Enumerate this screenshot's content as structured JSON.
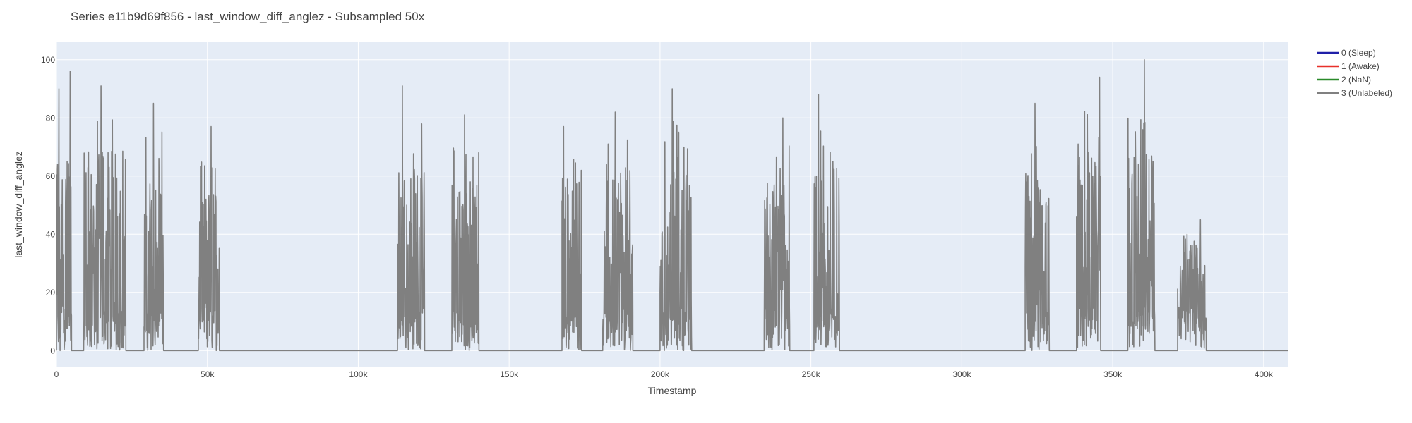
{
  "chart_data": {
    "type": "line",
    "title": "Series e11b9d69f856 - last_window_diff_anglez - Subsampled 50x",
    "xlabel": "Timestamp",
    "ylabel": "last_window_diff_anglez",
    "xlim": [
      0,
      408000
    ],
    "ylim": [
      -5.5,
      106
    ],
    "x_ticks": [
      0,
      50000,
      100000,
      150000,
      200000,
      250000,
      300000,
      350000,
      400000
    ],
    "x_tick_labels": [
      "0",
      "50k",
      "100k",
      "150k",
      "200k",
      "250k",
      "300k",
      "350k",
      "400k"
    ],
    "y_ticks": [
      0,
      20,
      40,
      60,
      80,
      100
    ],
    "y_tick_labels": [
      "0",
      "20",
      "40",
      "60",
      "80",
      "100"
    ],
    "grid": true,
    "legend_position": "top-right",
    "legend": [
      {
        "name": "0 (Sleep)",
        "color": "#1f1fa8"
      },
      {
        "name": "1 (Awake)",
        "color": "#e8312a"
      },
      {
        "name": "2 (NaN)",
        "color": "#2a8a2a"
      },
      {
        "name": "3 (Unlabeled)",
        "color": "#808080"
      }
    ],
    "series": [
      {
        "name": "3 (Unlabeled)",
        "color": "#808080",
        "active_bursts": [
          {
            "x_start": 0,
            "x_end": 1200,
            "peak": 90
          },
          {
            "x_start": 1200,
            "x_end": 5000,
            "peak": 96
          },
          {
            "x_start": 9000,
            "x_end": 23000,
            "peak": 91
          },
          {
            "x_start": 29000,
            "x_end": 35500,
            "peak": 85
          },
          {
            "x_start": 47000,
            "x_end": 54000,
            "peak": 77
          },
          {
            "x_start": 113000,
            "x_end": 122000,
            "peak": 91
          },
          {
            "x_start": 131000,
            "x_end": 140000,
            "peak": 81
          },
          {
            "x_start": 167500,
            "x_end": 174000,
            "peak": 77
          },
          {
            "x_start": 181000,
            "x_end": 191000,
            "peak": 82
          },
          {
            "x_start": 200000,
            "x_end": 210500,
            "peak": 90
          },
          {
            "x_start": 234500,
            "x_end": 243000,
            "peak": 80
          },
          {
            "x_start": 251000,
            "x_end": 259500,
            "peak": 88
          },
          {
            "x_start": 321000,
            "x_end": 329000,
            "peak": 85
          },
          {
            "x_start": 338000,
            "x_end": 346000,
            "peak": 94
          },
          {
            "x_start": 355000,
            "x_end": 364000,
            "peak": 100
          },
          {
            "x_start": 371500,
            "x_end": 381000,
            "peak": 45
          }
        ],
        "baseline_value": 0
      }
    ]
  }
}
